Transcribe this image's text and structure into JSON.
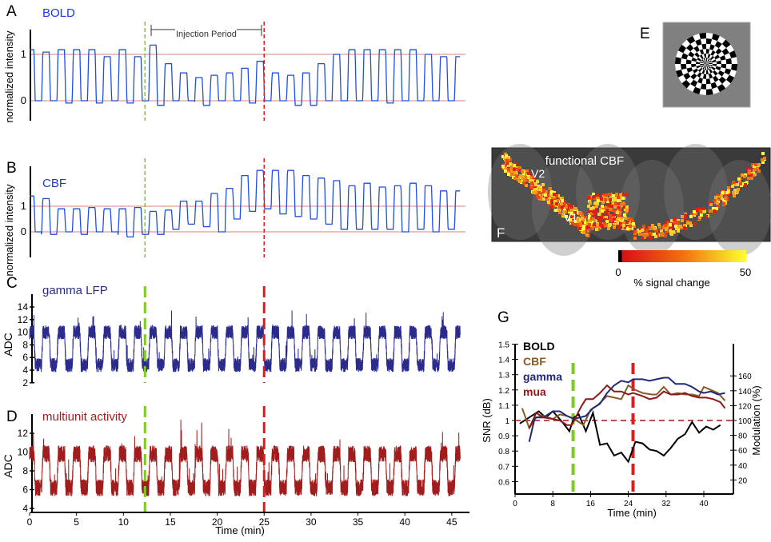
{
  "injection": {
    "start_min": 12.3,
    "end_min": 25,
    "label": "Injection Period",
    "start_color": "#7ccc1e",
    "end_color": "#d42020"
  },
  "time_axis": {
    "label": "Time (min)",
    "ticks": [
      0,
      5,
      10,
      15,
      20,
      25,
      30,
      35,
      40,
      45
    ],
    "xlim": [
      0,
      46
    ]
  },
  "chart_data": [
    {
      "id": "A",
      "panel_label": "A",
      "type": "line",
      "title": "BOLD",
      "ylabel": "normalized intensity",
      "yticks": [
        0,
        1
      ],
      "reference_lines": [
        0,
        1
      ],
      "color": "#1f4fe0",
      "title_color": "#1a3cd0",
      "block_period_min": 1.63,
      "on_levels": [
        1.1,
        1.05,
        1.1,
        1.1,
        1.1,
        0.95,
        1.1,
        0.95,
        1.2,
        0.8,
        0.6,
        0.5,
        0.55,
        0.6,
        0.7,
        0.85,
        0.6,
        0.55,
        0.6,
        0.8,
        1.0,
        1.1,
        1.1,
        1.1,
        1.1,
        1.1,
        1.0,
        0.95
      ],
      "off_levels": [
        0,
        0,
        -0.05,
        0,
        -0.05,
        0,
        -0.05,
        0,
        -0.1,
        0,
        0,
        -0.1,
        0,
        0,
        -0.05,
        0,
        0,
        -0.1,
        -0.1,
        0,
        0,
        0,
        0,
        -0.05,
        0,
        0,
        0,
        0
      ]
    },
    {
      "id": "B",
      "panel_label": "B",
      "type": "line",
      "title": "CBF",
      "ylabel": "normalized intensity",
      "yticks": [
        0,
        1
      ],
      "reference_lines": [
        0,
        1
      ],
      "color": "#1f4fe0",
      "title_color": "#1a3cd0",
      "block_period_min": 1.63,
      "on_levels": [
        1.4,
        1.3,
        0.9,
        0.9,
        0.95,
        0.9,
        0.9,
        0.95,
        0.8,
        0.85,
        1.2,
        1.2,
        1.5,
        1.7,
        2.2,
        2.4,
        2.4,
        2.4,
        2.2,
        2.1,
        2.0,
        1.8,
        1.9,
        1.75,
        1.8,
        1.9,
        1.8,
        1.6
      ],
      "off_levels": [
        0,
        -0.1,
        0,
        -0.1,
        0,
        0,
        -0.2,
        -0.1,
        -0.1,
        0.1,
        0.3,
        0.2,
        0.0,
        0.5,
        0.8,
        0.9,
        0.7,
        0.6,
        0.5,
        0.3,
        0.1,
        0.1,
        0.1,
        0.1,
        0.0,
        0.1,
        0.0,
        0.1
      ]
    },
    {
      "id": "C",
      "panel_label": "C",
      "type": "line",
      "title": "gamma LFP",
      "ylabel": "ADC",
      "yticks": [
        2,
        4,
        6,
        8,
        10,
        12,
        14
      ],
      "ylim": [
        2,
        15
      ],
      "color": "#2b2b8c",
      "title_color": "#2b2b8c",
      "block_period_min": 1.63,
      "on_level": 10,
      "off_level": 4.8,
      "noise": 1.1
    },
    {
      "id": "D",
      "panel_label": "D",
      "type": "line",
      "title": "multiunit activity",
      "ylabel": "ADC",
      "yticks": [
        4,
        6,
        8,
        10,
        12
      ],
      "ylim": [
        4,
        14
      ],
      "color": "#a11c1c",
      "title_color": "#a11c1c",
      "block_period_min": 1.63,
      "on_level": 9.8,
      "off_level": 6.2,
      "noise": 0.9
    },
    {
      "id": "G",
      "panel_label": "G",
      "type": "line",
      "xlabel": "Time (min)",
      "ylabel": "SNR (dB)",
      "ylabel_right": "Modulation (%)",
      "xticks": [
        0,
        8,
        16,
        24,
        32,
        40
      ],
      "xlim": [
        0,
        46
      ],
      "yticks": [
        0.6,
        0.7,
        0.8,
        0.9,
        1,
        1.1,
        1.2,
        1.3,
        1.4,
        1.5
      ],
      "ylim": [
        0.55,
        1.5
      ],
      "yticks_right": [
        20,
        40,
        60,
        80,
        100,
        120,
        140,
        160
      ],
      "ylim_right": [
        0,
        180
      ],
      "reference_line": 1.0,
      "reference_color": "#a11c1c",
      "series": [
        {
          "name": "BOLD",
          "color": "#000000",
          "x": [
            1,
            3,
            5,
            6.5,
            8,
            10,
            11.5,
            12.5,
            13.5,
            15,
            16.5,
            18,
            19.5,
            21,
            22.5,
            24,
            25.5,
            27,
            28.5,
            30,
            31.5,
            33,
            34.5,
            36,
            37.5,
            39,
            40.5,
            42,
            43.5
          ],
          "y": [
            0.98,
            1.02,
            1.06,
            1.02,
            1.06,
            0.99,
            0.93,
            1.02,
            1.04,
            0.93,
            1.05,
            0.84,
            0.85,
            0.77,
            0.79,
            0.73,
            0.86,
            0.85,
            0.81,
            0.8,
            0.77,
            0.82,
            0.88,
            0.91,
            0.99,
            0.92,
            0.96,
            0.94,
            0.97
          ]
        },
        {
          "name": "CBF",
          "color": "#8a5a24",
          "x": [
            1.5,
            3,
            4.5,
            6,
            8,
            9.5,
            11,
            12.5,
            14.5,
            16,
            17.5,
            19.5,
            21,
            22.5,
            24,
            25.5,
            27,
            29,
            30,
            31.5,
            33,
            34.5,
            36,
            37.5,
            39,
            40,
            41.5,
            43,
            44.5
          ],
          "y": [
            1.08,
            0.95,
            1.02,
            1.03,
            1.01,
            1.04,
            1.03,
            1.01,
            0.97,
            1.07,
            1.1,
            1.16,
            1.15,
            1.14,
            1.23,
            1.2,
            1.18,
            1.17,
            1.17,
            1.22,
            1.17,
            1.18,
            1.17,
            1.17,
            1.16,
            1.22,
            1.2,
            1.18,
            1.13
          ]
        },
        {
          "name": "gamma",
          "color": "#1f2a7a",
          "x": [
            3,
            4.2,
            6,
            8,
            9.5,
            11,
            12.5,
            15,
            16.5,
            18,
            19.5,
            21,
            22.5,
            24,
            25,
            27,
            28.5,
            30,
            31.5,
            32.5,
            34,
            36,
            37.5,
            39,
            40,
            41.5,
            43,
            44.5
          ],
          "y": [
            0.86,
            1.02,
            1.02,
            1.06,
            1.06,
            1.03,
            1.01,
            1.03,
            1.08,
            1.11,
            1.18,
            1.23,
            1.26,
            1.25,
            1.27,
            1.27,
            1.26,
            1.27,
            1.28,
            1.28,
            1.24,
            1.24,
            1.22,
            1.19,
            1.18,
            1.19,
            1.17,
            1.18
          ]
        },
        {
          "name": "mua",
          "color": "#8b1a1a",
          "x": [
            3,
            4.5,
            6,
            8,
            9.5,
            11,
            12,
            13,
            14,
            15,
            16.5,
            18,
            19.5,
            21,
            22.5,
            24,
            25,
            27,
            28.5,
            30,
            31.5,
            33,
            34.5,
            36,
            37.5,
            39,
            40.5,
            42,
            43.5,
            44.5
          ],
          "y": [
            0.95,
            1.05,
            1.02,
            1.01,
            1.0,
            0.97,
            0.97,
            1.03,
            1.09,
            1.14,
            1.14,
            1.18,
            1.23,
            1.19,
            1.19,
            1.17,
            1.18,
            1.16,
            1.14,
            1.15,
            1.19,
            1.17,
            1.17,
            1.18,
            1.16,
            1.15,
            1.15,
            1.14,
            1.12,
            1.08
          ]
        }
      ]
    }
  ],
  "panel_E": {
    "label": "E",
    "stimulus": "checkerboard",
    "background": "#808080"
  },
  "panel_F": {
    "label": "F",
    "title": "functional CBF",
    "region_labels": [
      "V2",
      "V1"
    ],
    "colorbar": {
      "min": "0",
      "max": "50",
      "label": "% signal change",
      "colors": [
        "#000000",
        "#d81010",
        "#f07010",
        "#ffff30"
      ]
    }
  }
}
